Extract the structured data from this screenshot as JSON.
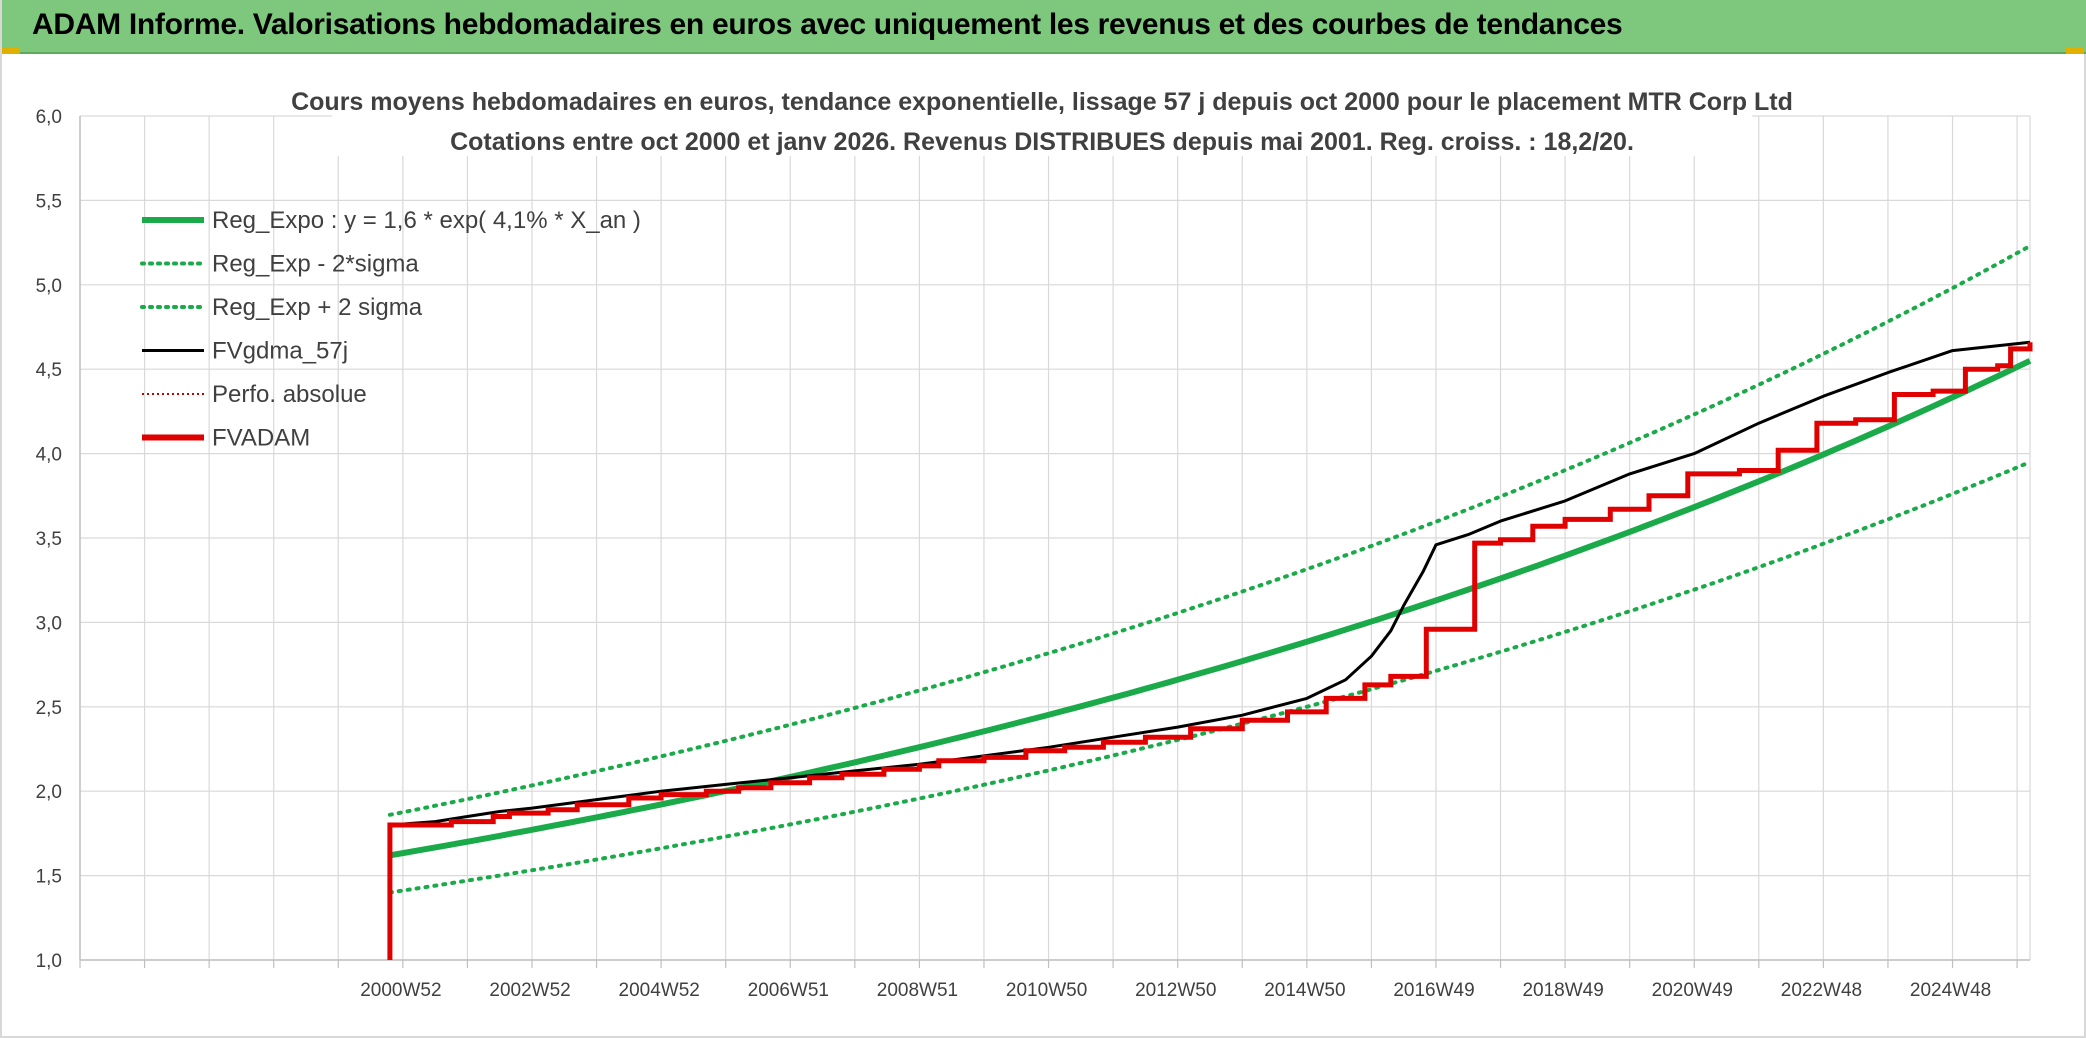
{
  "header": {
    "title": "ADAM Informe. Valorisations hebdomadaires en euros avec uniquement les revenus et des courbes de tendances"
  },
  "colors": {
    "header_bg": "#7ec87e",
    "reg_expo": "#1aaa4a",
    "sigma_bands": "#1aaa4a",
    "fvgdma": "#000000",
    "perfo": "#c00000",
    "fvadam": "#e00000",
    "grid": "#d9d9d9"
  },
  "chart_data": {
    "type": "line",
    "title": "Cours moyens hebdomadaires en euros, tendance exponentielle, lissage 57 j depuis oct 2000 pour le placement MTR Corp Ltd",
    "subtitle": "Cotations entre oct 2000 et janv 2026. Revenus DISTRIBUES depuis mai 2001. Reg. croiss. : 18,2/20.",
    "xlabel": "",
    "ylabel": "",
    "ylim": [
      1.0,
      6.0
    ],
    "xlim": [
      1996.0,
      2026.2
    ],
    "y_ticks": [
      "1,0",
      "1,5",
      "2,0",
      "2,5",
      "3,0",
      "3,5",
      "4,0",
      "4,5",
      "5,0",
      "5,5",
      "6,0"
    ],
    "x_tick_labels": [
      {
        "label": "2000W52",
        "x": 2000.97
      },
      {
        "label": "2002W52",
        "x": 2002.97
      },
      {
        "label": "2004W52",
        "x": 2004.97
      },
      {
        "label": "2006W51",
        "x": 2006.97
      },
      {
        "label": "2008W51",
        "x": 2008.97
      },
      {
        "label": "2010W50",
        "x": 2010.97
      },
      {
        "label": "2012W50",
        "x": 2012.97
      },
      {
        "label": "2014W50",
        "x": 2014.97
      },
      {
        "label": "2016W49",
        "x": 2016.97
      },
      {
        "label": "2018W49",
        "x": 2018.97
      },
      {
        "label": "2020W49",
        "x": 2020.97
      },
      {
        "label": "2022W48",
        "x": 2022.97
      },
      {
        "label": "2024W48",
        "x": 2024.97
      }
    ],
    "grid": true,
    "legend_position": "top-left",
    "legend": [
      {
        "name": "Reg_Expo : y = 1,6 * exp( 4,1% *  X_an )",
        "style": "solid-thick",
        "color": "#1aaa4a"
      },
      {
        "name": "Reg_Exp - 2*sigma",
        "style": "dotted",
        "color": "#1aaa4a"
      },
      {
        "name": "Reg_Exp + 2 sigma",
        "style": "dotted",
        "color": "#1aaa4a"
      },
      {
        "name": "FVgdma_57j",
        "style": "solid",
        "color": "#000000"
      },
      {
        "name": "Perfo. absolue",
        "style": "dotted-thin",
        "color": "#c00000"
      },
      {
        "name": "FVADAM",
        "style": "solid-thick",
        "color": "#e00000"
      }
    ],
    "series": [
      {
        "name": "Reg_Expo : y = 1,6 * exp( 4,1% *  X_an )",
        "x": [
          2000.8,
          2003,
          2005,
          2007,
          2009,
          2011,
          2013,
          2015,
          2017,
          2019,
          2021,
          2023,
          2025,
          2026.2
        ],
        "y": [
          1.62,
          1.75,
          1.91,
          2.08,
          2.26,
          2.46,
          2.67,
          2.9,
          3.16,
          3.42,
          3.72,
          4.04,
          4.39,
          4.55
        ]
      },
      {
        "name": "Reg_Exp - 2*sigma",
        "x": [
          2000.8,
          2003,
          2005,
          2007,
          2009,
          2011,
          2013,
          2015,
          2017,
          2019,
          2021,
          2023,
          2025,
          2026.2
        ],
        "y": [
          1.4,
          1.52,
          1.65,
          1.8,
          1.96,
          2.13,
          2.31,
          2.51,
          2.72,
          2.96,
          3.22,
          3.49,
          3.8,
          3.95
        ]
      },
      {
        "name": "Reg_Exp + 2 sigma",
        "x": [
          2000.8,
          2003,
          2005,
          2007,
          2009,
          2011,
          2013,
          2015,
          2017,
          2019,
          2021,
          2023,
          2025,
          2026.2
        ],
        "y": [
          1.86,
          2.01,
          2.19,
          2.39,
          2.6,
          2.83,
          3.07,
          3.34,
          3.62,
          3.94,
          4.28,
          4.64,
          5.05,
          5.23
        ]
      },
      {
        "name": "FVgdma_57j",
        "x": [
          2000.8,
          2000.8,
          2001.5,
          2002,
          2002.5,
          2003,
          2004,
          2005,
          2006,
          2007,
          2008,
          2009,
          2010,
          2011,
          2012,
          2013,
          2014,
          2015,
          2015.6,
          2016,
          2016.3,
          2016.5,
          2016.8,
          2017,
          2017.5,
          2018,
          2019,
          2020,
          2021,
          2022,
          2023,
          2024,
          2025,
          2026.2
        ],
        "y": [
          1.0,
          1.8,
          1.82,
          1.85,
          1.88,
          1.9,
          1.95,
          2.0,
          2.04,
          2.08,
          2.12,
          2.16,
          2.21,
          2.26,
          2.32,
          2.38,
          2.45,
          2.55,
          2.66,
          2.8,
          2.95,
          3.1,
          3.3,
          3.46,
          3.52,
          3.6,
          3.72,
          3.88,
          4.0,
          4.18,
          4.34,
          4.48,
          4.61,
          4.66
        ]
      },
      {
        "name": "FVADAM",
        "steps": [
          [
            2000.8,
            1.0
          ],
          [
            2000.8,
            1.8
          ],
          [
            2001.75,
            1.82
          ],
          [
            2002.4,
            1.85
          ],
          [
            2002.65,
            1.87
          ],
          [
            2003.25,
            1.89
          ],
          [
            2003.7,
            1.92
          ],
          [
            2004.5,
            1.96
          ],
          [
            2005.0,
            1.98
          ],
          [
            2005.7,
            2.0
          ],
          [
            2006.2,
            2.02
          ],
          [
            2006.7,
            2.05
          ],
          [
            2007.3,
            2.08
          ],
          [
            2007.8,
            2.1
          ],
          [
            2008.45,
            2.13
          ],
          [
            2009.0,
            2.15
          ],
          [
            2009.3,
            2.18
          ],
          [
            2010.0,
            2.2
          ],
          [
            2010.65,
            2.24
          ],
          [
            2011.25,
            2.26
          ],
          [
            2011.85,
            2.29
          ],
          [
            2012.5,
            2.32
          ],
          [
            2013.2,
            2.37
          ],
          [
            2014.0,
            2.42
          ],
          [
            2014.7,
            2.47
          ],
          [
            2015.3,
            2.55
          ],
          [
            2015.9,
            2.63
          ],
          [
            2016.3,
            2.68
          ],
          [
            2016.85,
            2.96
          ],
          [
            2017.6,
            3.47
          ],
          [
            2018.0,
            3.49
          ],
          [
            2018.5,
            3.57
          ],
          [
            2019.0,
            3.61
          ],
          [
            2019.7,
            3.67
          ],
          [
            2020.3,
            3.75
          ],
          [
            2020.9,
            3.88
          ],
          [
            2021.7,
            3.9
          ],
          [
            2022.3,
            4.02
          ],
          [
            2022.9,
            4.18
          ],
          [
            2023.5,
            4.2
          ],
          [
            2024.1,
            4.35
          ],
          [
            2024.7,
            4.37
          ],
          [
            2025.2,
            4.5
          ],
          [
            2025.7,
            4.52
          ],
          [
            2025.9,
            4.62
          ],
          [
            2026.2,
            4.66
          ]
        ]
      }
    ]
  }
}
